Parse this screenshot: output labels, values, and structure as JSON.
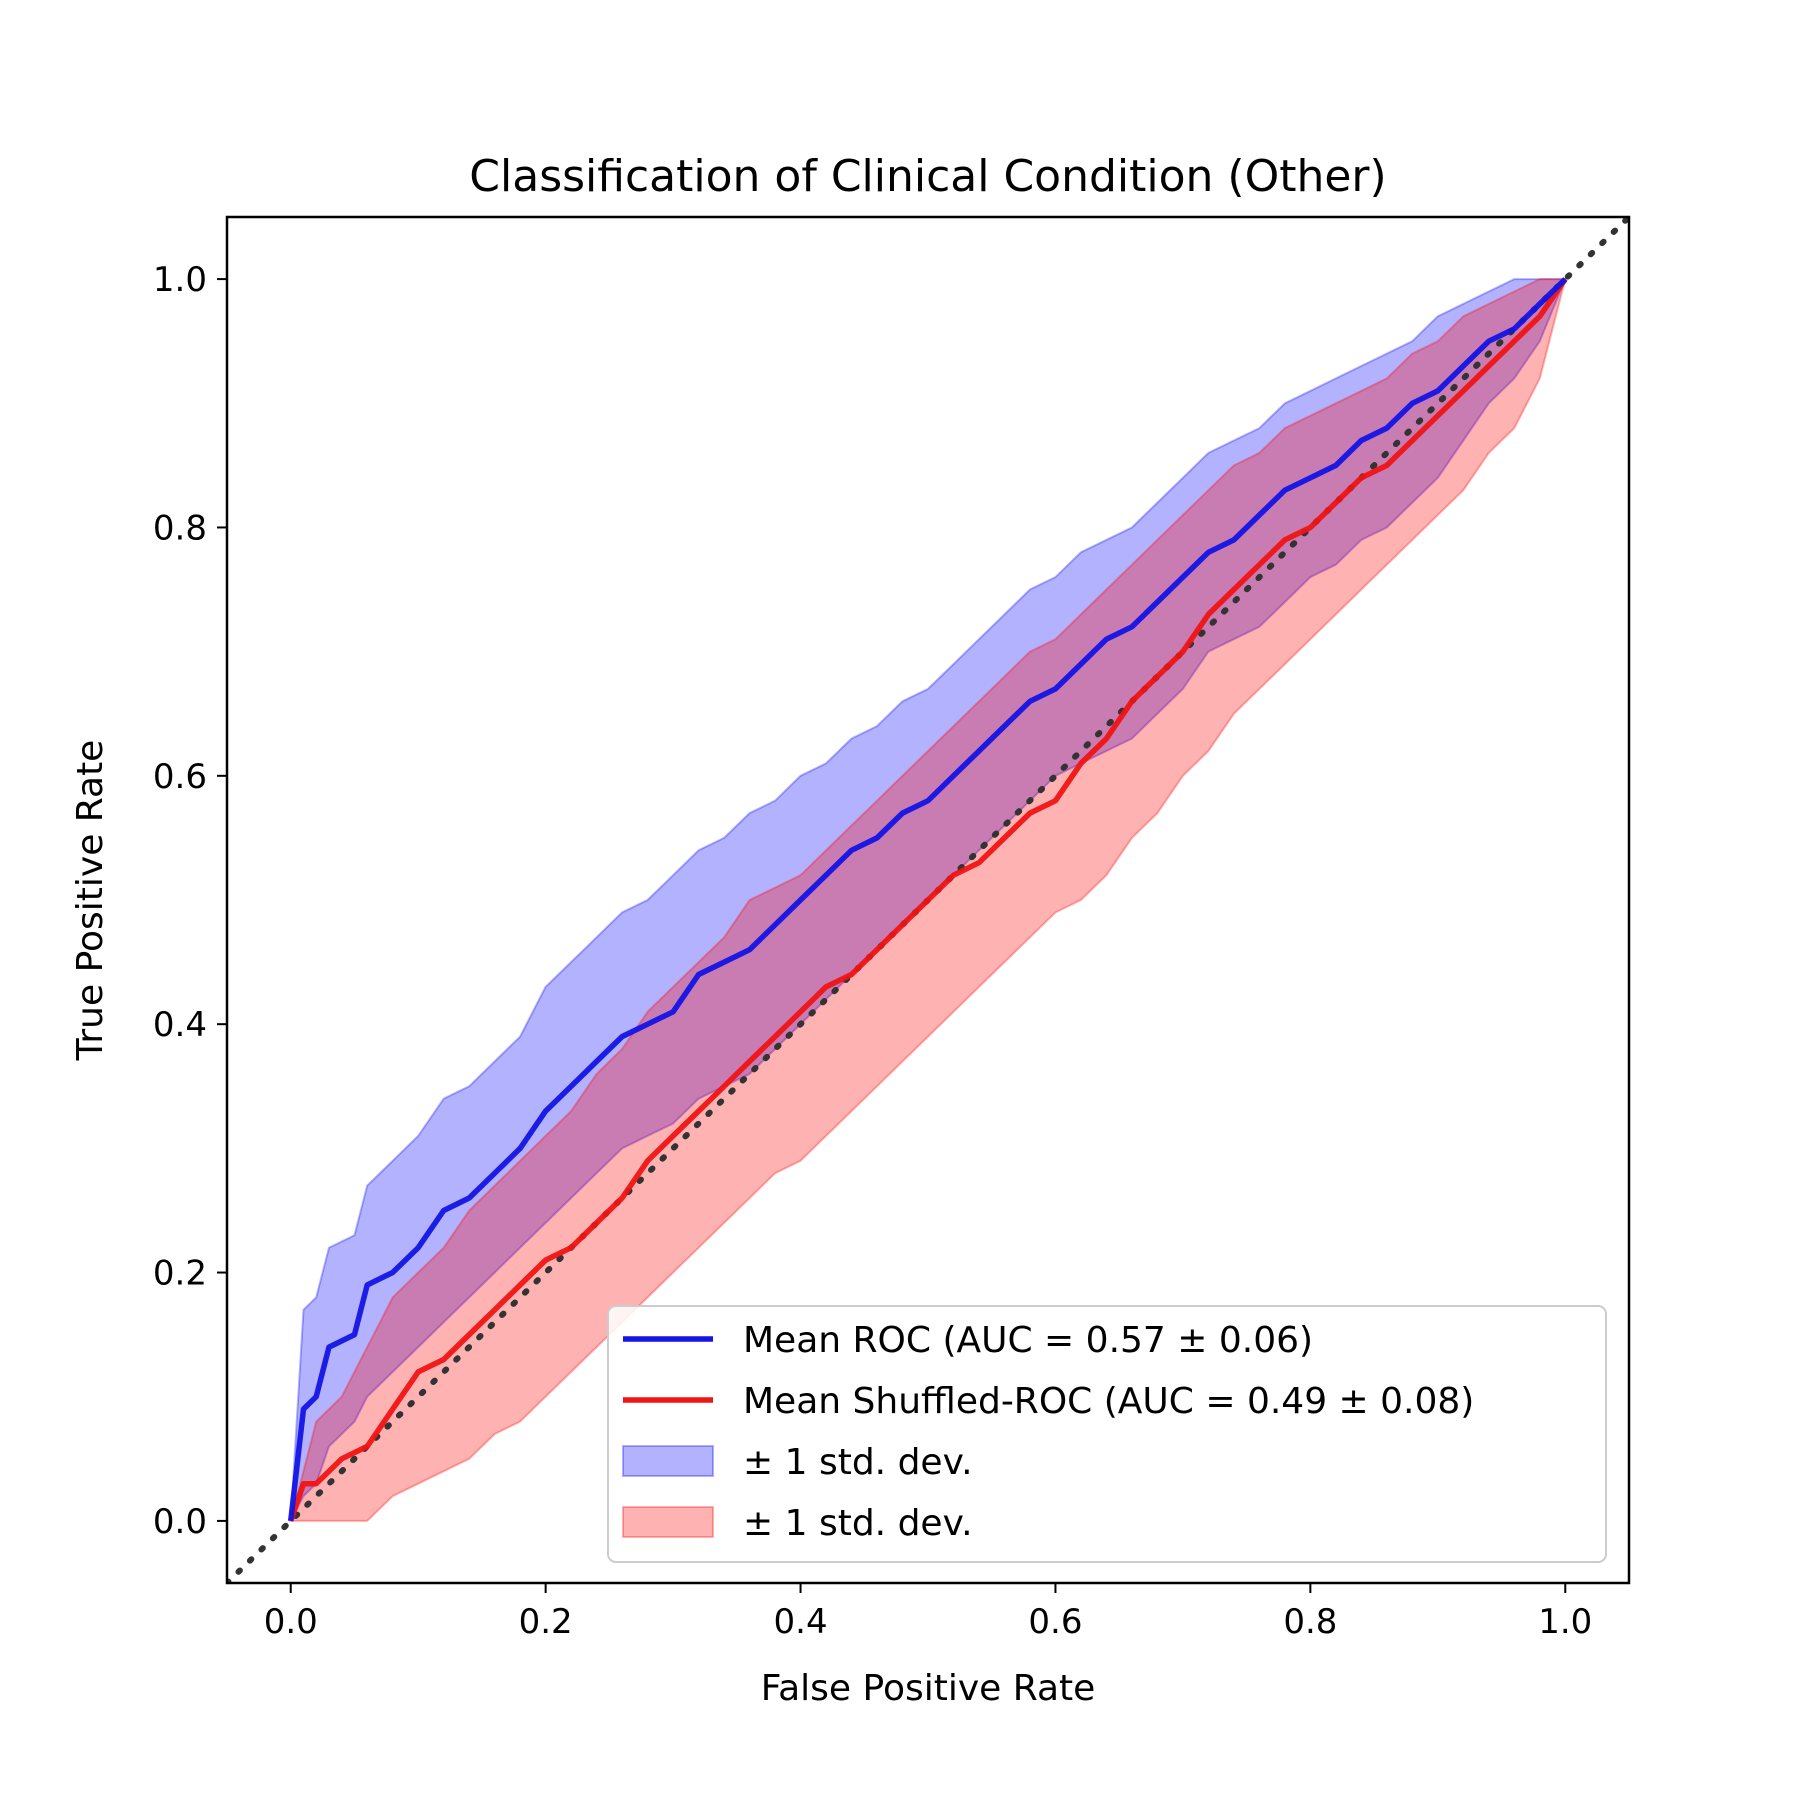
{
  "chart_data": {
    "type": "line",
    "title": "Classification of Clinical Condition (Other)",
    "xlabel": "False Positive Rate",
    "ylabel": "True Positive Rate",
    "xlim": [
      -0.05,
      1.05
    ],
    "ylim": [
      -0.05,
      1.05
    ],
    "xticks": [
      "0.0",
      "0.2",
      "0.4",
      "0.6",
      "0.8",
      "1.0"
    ],
    "yticks": [
      "0.0",
      "0.2",
      "0.4",
      "0.6",
      "0.8",
      "1.0"
    ],
    "legend_position": "lower-right",
    "grid": false,
    "series": [
      {
        "name": "Mean ROC (AUC = 0.57 ± 0.06)",
        "kind": "line",
        "color": "#1414e6",
        "x": [
          0.0,
          0.01,
          0.02,
          0.03,
          0.05,
          0.06,
          0.08,
          0.1,
          0.12,
          0.14,
          0.16,
          0.18,
          0.2,
          0.22,
          0.24,
          0.26,
          0.28,
          0.3,
          0.32,
          0.34,
          0.36,
          0.38,
          0.4,
          0.42,
          0.44,
          0.46,
          0.48,
          0.5,
          0.52,
          0.54,
          0.56,
          0.58,
          0.6,
          0.62,
          0.64,
          0.66,
          0.68,
          0.7,
          0.72,
          0.74,
          0.76,
          0.78,
          0.8,
          0.82,
          0.84,
          0.86,
          0.88,
          0.9,
          0.92,
          0.94,
          0.96,
          0.98,
          1.0
        ],
        "y": [
          0.0,
          0.09,
          0.1,
          0.14,
          0.15,
          0.19,
          0.2,
          0.22,
          0.25,
          0.26,
          0.28,
          0.3,
          0.33,
          0.35,
          0.37,
          0.39,
          0.4,
          0.41,
          0.44,
          0.45,
          0.46,
          0.48,
          0.5,
          0.52,
          0.54,
          0.55,
          0.57,
          0.58,
          0.6,
          0.62,
          0.64,
          0.66,
          0.67,
          0.69,
          0.71,
          0.72,
          0.74,
          0.76,
          0.78,
          0.79,
          0.81,
          0.83,
          0.84,
          0.85,
          0.87,
          0.88,
          0.9,
          0.91,
          0.93,
          0.95,
          0.96,
          0.98,
          1.0
        ]
      },
      {
        "name": "Mean Shuffled-ROC (AUC = 0.49 ± 0.08)",
        "kind": "line",
        "color": "#f01414",
        "x": [
          0.0,
          0.01,
          0.02,
          0.04,
          0.06,
          0.08,
          0.1,
          0.12,
          0.14,
          0.16,
          0.18,
          0.2,
          0.22,
          0.24,
          0.26,
          0.28,
          0.3,
          0.32,
          0.34,
          0.36,
          0.38,
          0.4,
          0.42,
          0.44,
          0.46,
          0.48,
          0.5,
          0.52,
          0.54,
          0.56,
          0.58,
          0.6,
          0.62,
          0.64,
          0.66,
          0.68,
          0.7,
          0.72,
          0.74,
          0.76,
          0.78,
          0.8,
          0.82,
          0.84,
          0.86,
          0.88,
          0.9,
          0.92,
          0.94,
          0.96,
          0.98,
          1.0
        ],
        "y": [
          0.0,
          0.03,
          0.03,
          0.05,
          0.06,
          0.09,
          0.12,
          0.13,
          0.15,
          0.17,
          0.19,
          0.21,
          0.22,
          0.24,
          0.26,
          0.29,
          0.31,
          0.33,
          0.35,
          0.37,
          0.39,
          0.41,
          0.43,
          0.44,
          0.46,
          0.48,
          0.5,
          0.52,
          0.53,
          0.55,
          0.57,
          0.58,
          0.61,
          0.63,
          0.66,
          0.68,
          0.7,
          0.73,
          0.75,
          0.77,
          0.79,
          0.8,
          0.82,
          0.84,
          0.85,
          0.87,
          0.89,
          0.91,
          0.93,
          0.95,
          0.97,
          1.0
        ]
      },
      {
        "name": "± 1 std. dev.",
        "kind": "band",
        "color": "#0000ff",
        "x": [
          0.0,
          0.01,
          0.02,
          0.03,
          0.05,
          0.06,
          0.08,
          0.1,
          0.12,
          0.14,
          0.16,
          0.18,
          0.2,
          0.22,
          0.24,
          0.26,
          0.28,
          0.3,
          0.32,
          0.34,
          0.36,
          0.38,
          0.4,
          0.42,
          0.44,
          0.46,
          0.48,
          0.5,
          0.52,
          0.54,
          0.56,
          0.58,
          0.6,
          0.62,
          0.64,
          0.66,
          0.68,
          0.7,
          0.72,
          0.74,
          0.76,
          0.78,
          0.8,
          0.82,
          0.84,
          0.86,
          0.88,
          0.9,
          0.92,
          0.94,
          0.96,
          0.98,
          1.0
        ],
        "upper": [
          0.0,
          0.17,
          0.18,
          0.22,
          0.23,
          0.27,
          0.29,
          0.31,
          0.34,
          0.35,
          0.37,
          0.39,
          0.43,
          0.45,
          0.47,
          0.49,
          0.5,
          0.52,
          0.54,
          0.55,
          0.57,
          0.58,
          0.6,
          0.61,
          0.63,
          0.64,
          0.66,
          0.67,
          0.69,
          0.71,
          0.73,
          0.75,
          0.76,
          0.78,
          0.79,
          0.8,
          0.82,
          0.84,
          0.86,
          0.87,
          0.88,
          0.9,
          0.91,
          0.92,
          0.93,
          0.94,
          0.95,
          0.97,
          0.98,
          0.99,
          1.0,
          1.0,
          1.0
        ],
        "lower": [
          0.0,
          0.02,
          0.03,
          0.06,
          0.08,
          0.1,
          0.12,
          0.14,
          0.16,
          0.18,
          0.2,
          0.22,
          0.24,
          0.26,
          0.28,
          0.3,
          0.31,
          0.32,
          0.34,
          0.35,
          0.36,
          0.38,
          0.4,
          0.42,
          0.44,
          0.46,
          0.48,
          0.5,
          0.52,
          0.54,
          0.56,
          0.58,
          0.6,
          0.61,
          0.62,
          0.63,
          0.65,
          0.67,
          0.7,
          0.71,
          0.72,
          0.74,
          0.76,
          0.77,
          0.79,
          0.8,
          0.82,
          0.84,
          0.87,
          0.9,
          0.92,
          0.95,
          1.0
        ]
      },
      {
        "name": "± 1 std. dev.",
        "kind": "band",
        "color": "#ff0000",
        "x": [
          0.0,
          0.02,
          0.04,
          0.06,
          0.08,
          0.1,
          0.12,
          0.14,
          0.16,
          0.18,
          0.2,
          0.22,
          0.24,
          0.26,
          0.28,
          0.3,
          0.32,
          0.34,
          0.36,
          0.38,
          0.4,
          0.42,
          0.44,
          0.46,
          0.48,
          0.5,
          0.52,
          0.54,
          0.56,
          0.58,
          0.6,
          0.62,
          0.64,
          0.66,
          0.68,
          0.7,
          0.72,
          0.74,
          0.76,
          0.78,
          0.8,
          0.82,
          0.84,
          0.86,
          0.88,
          0.9,
          0.92,
          0.94,
          0.96,
          0.98,
          1.0
        ],
        "upper": [
          0.0,
          0.08,
          0.1,
          0.14,
          0.18,
          0.2,
          0.22,
          0.25,
          0.27,
          0.29,
          0.31,
          0.33,
          0.36,
          0.38,
          0.41,
          0.43,
          0.45,
          0.47,
          0.5,
          0.51,
          0.52,
          0.54,
          0.56,
          0.58,
          0.6,
          0.62,
          0.64,
          0.66,
          0.68,
          0.7,
          0.71,
          0.73,
          0.75,
          0.77,
          0.79,
          0.81,
          0.83,
          0.85,
          0.86,
          0.88,
          0.89,
          0.9,
          0.91,
          0.92,
          0.94,
          0.95,
          0.97,
          0.98,
          0.99,
          1.0,
          1.0
        ],
        "lower": [
          0.0,
          0.0,
          0.0,
          0.0,
          0.02,
          0.03,
          0.04,
          0.05,
          0.07,
          0.08,
          0.1,
          0.12,
          0.14,
          0.16,
          0.18,
          0.2,
          0.22,
          0.24,
          0.26,
          0.28,
          0.29,
          0.31,
          0.33,
          0.35,
          0.37,
          0.39,
          0.41,
          0.43,
          0.45,
          0.47,
          0.49,
          0.5,
          0.52,
          0.55,
          0.57,
          0.6,
          0.62,
          0.65,
          0.67,
          0.69,
          0.71,
          0.73,
          0.75,
          0.77,
          0.79,
          0.81,
          0.83,
          0.86,
          0.88,
          0.92,
          1.0
        ]
      }
    ],
    "diagonal": {
      "x": [
        -0.05,
        1.05
      ],
      "y": [
        -0.05,
        1.05
      ],
      "color": "#333333"
    },
    "legend": [
      {
        "label": "Mean ROC (AUC = 0.57 ± 0.06)",
        "swatch": "line",
        "color": "#1414e6"
      },
      {
        "label": "Mean Shuffled-ROC (AUC = 0.49 ± 0.08)",
        "swatch": "line",
        "color": "#f01414"
      },
      {
        "label": "± 1 std. dev.",
        "swatch": "patch",
        "color": "#0000ff"
      },
      {
        "label": "± 1 std. dev.",
        "swatch": "patch",
        "color": "#ff0000"
      }
    ]
  }
}
